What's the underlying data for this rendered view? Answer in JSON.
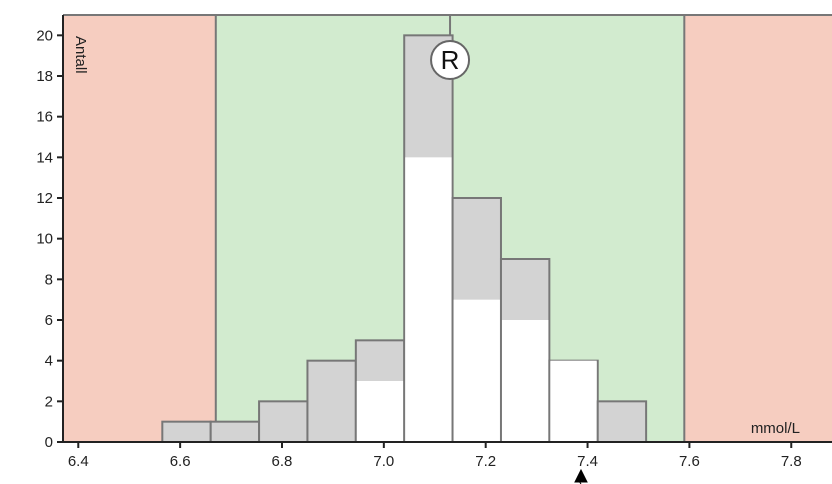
{
  "chart_data": {
    "type": "bar",
    "xlabel": "mmol/L",
    "ylabel": "Antall",
    "xlim": [
      6.37,
      7.88
    ],
    "ylim": [
      0,
      21
    ],
    "x_ticks": [
      6.4,
      6.6,
      6.8,
      7.0,
      7.2,
      7.4,
      7.6,
      7.8
    ],
    "x_tick_labels": [
      "6.4",
      "6.6",
      "6.8",
      "7.0",
      "7.2",
      "7.4",
      "7.6",
      "7.8"
    ],
    "y_ticks": [
      0,
      2,
      4,
      6,
      8,
      10,
      12,
      14,
      16,
      18,
      20
    ],
    "y_tick_labels": [
      "0",
      "2",
      "4",
      "6",
      "8",
      "10",
      "12",
      "14",
      "16",
      "18",
      "20"
    ],
    "bin_width": 0.095,
    "series": [
      {
        "values": [
          {
            "x0": 6.565,
            "total": 1,
            "white": 0
          },
          {
            "x0": 6.66,
            "total": 1,
            "white": 0
          },
          {
            "x0": 6.755,
            "total": 2,
            "white": 0
          },
          {
            "x0": 6.85,
            "total": 4,
            "white": 0
          },
          {
            "x0": 6.945,
            "total": 5,
            "white": 3
          },
          {
            "x0": 7.04,
            "total": 20,
            "white": 14
          },
          {
            "x0": 7.135,
            "total": 12,
            "white": 7
          },
          {
            "x0": 7.23,
            "total": 9,
            "white": 6
          },
          {
            "x0": 7.325,
            "total": 4,
            "white": 4
          },
          {
            "x0": 7.42,
            "total": 2,
            "white": 0
          }
        ]
      }
    ],
    "zones": [
      {
        "from": 6.37,
        "to": 6.67,
        "color": "#f6cdc0"
      },
      {
        "from": 6.67,
        "to": 7.59,
        "color": "#d2ebcf"
      },
      {
        "from": 7.59,
        "to": 7.88,
        "color": "#f6cdc0"
      }
    ],
    "reference_value": 7.13,
    "reference_marker": "R",
    "grid": false
  }
}
